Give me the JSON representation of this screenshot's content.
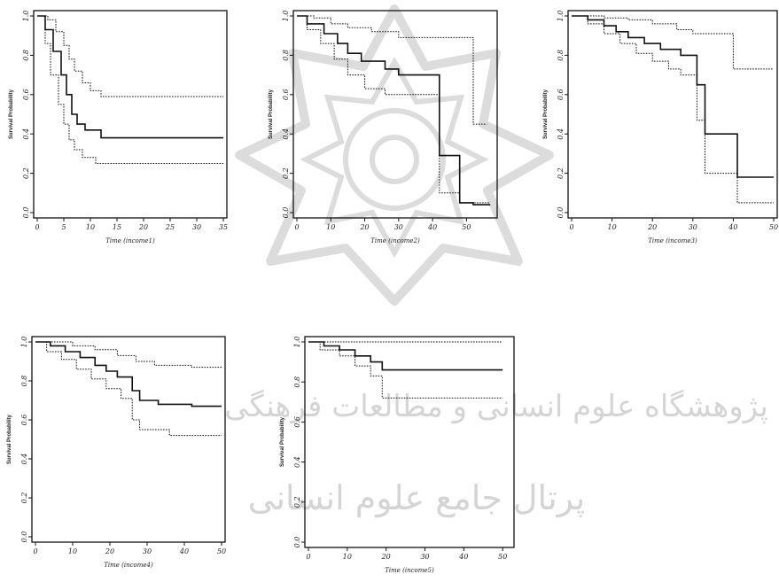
{
  "watermark": {
    "line1": "پژوهشگاه علوم انسانی و مطالعات فرهنگی",
    "line2": "پرتال جامع علوم انسانی"
  },
  "chart_data": [
    {
      "type": "line",
      "xlabel": "Time (income1)",
      "ylabel": "Survival Probability",
      "xlim": [
        0,
        35
      ],
      "ylim": [
        0,
        1
      ],
      "xticks": [
        0,
        5,
        10,
        15,
        20,
        25,
        30,
        35
      ],
      "yticks": [
        0.0,
        0.2,
        0.4,
        0.6,
        0.8,
        1.0
      ],
      "series": [
        {
          "style": "solid",
          "points": [
            [
              0,
              1
            ],
            [
              1.5,
              1
            ],
            [
              1.5,
              0.93
            ],
            [
              3,
              0.93
            ],
            [
              3,
              0.82
            ],
            [
              4.5,
              0.82
            ],
            [
              4.5,
              0.7
            ],
            [
              5.5,
              0.7
            ],
            [
              5.5,
              0.6
            ],
            [
              6.5,
              0.6
            ],
            [
              6.5,
              0.5
            ],
            [
              7.5,
              0.5
            ],
            [
              7.5,
              0.45
            ],
            [
              9,
              0.45
            ],
            [
              9,
              0.42
            ],
            [
              12,
              0.42
            ],
            [
              12,
              0.38
            ],
            [
              35,
              0.38
            ]
          ]
        },
        {
          "style": "dotted",
          "points": [
            [
              0,
              1
            ],
            [
              2,
              1
            ],
            [
              2,
              0.98
            ],
            [
              3.5,
              0.98
            ],
            [
              3.5,
              0.92
            ],
            [
              5,
              0.92
            ],
            [
              5,
              0.85
            ],
            [
              6,
              0.85
            ],
            [
              6,
              0.78
            ],
            [
              7,
              0.78
            ],
            [
              7,
              0.72
            ],
            [
              8.5,
              0.72
            ],
            [
              8.5,
              0.66
            ],
            [
              10,
              0.66
            ],
            [
              10,
              0.62
            ],
            [
              12,
              0.62
            ],
            [
              12,
              0.59
            ],
            [
              35,
              0.59
            ]
          ]
        },
        {
          "style": "dotted",
          "points": [
            [
              0,
              1
            ],
            [
              1.5,
              1
            ],
            [
              1.5,
              0.86
            ],
            [
              2.5,
              0.86
            ],
            [
              2.5,
              0.7
            ],
            [
              4,
              0.7
            ],
            [
              4,
              0.55
            ],
            [
              5,
              0.55
            ],
            [
              5,
              0.45
            ],
            [
              6,
              0.45
            ],
            [
              6,
              0.37
            ],
            [
              7,
              0.37
            ],
            [
              7,
              0.32
            ],
            [
              8.5,
              0.32
            ],
            [
              8.5,
              0.28
            ],
            [
              11,
              0.28
            ],
            [
              11,
              0.25
            ],
            [
              35,
              0.25
            ]
          ]
        }
      ]
    },
    {
      "type": "line",
      "xlabel": "Time (income2)",
      "ylabel": "Survival Probability",
      "xlim": [
        0,
        58
      ],
      "ylim": [
        0,
        1
      ],
      "xticks": [
        0,
        10,
        20,
        30,
        40,
        50
      ],
      "yticks": [
        0.0,
        0.2,
        0.4,
        0.6,
        0.8,
        1.0
      ],
      "series": [
        {
          "style": "solid",
          "points": [
            [
              0,
              1
            ],
            [
              3,
              1
            ],
            [
              3,
              0.96
            ],
            [
              8,
              0.96
            ],
            [
              8,
              0.91
            ],
            [
              12,
              0.91
            ],
            [
              12,
              0.86
            ],
            [
              15,
              0.86
            ],
            [
              15,
              0.81
            ],
            [
              19,
              0.81
            ],
            [
              19,
              0.77
            ],
            [
              26,
              0.77
            ],
            [
              26,
              0.73
            ],
            [
              30,
              0.73
            ],
            [
              30,
              0.7
            ],
            [
              42,
              0.7
            ],
            [
              42,
              0.29
            ],
            [
              48,
              0.29
            ],
            [
              48,
              0.05
            ],
            [
              52,
              0.05
            ],
            [
              52,
              0.04
            ],
            [
              57,
              0.04
            ]
          ]
        },
        {
          "style": "dotted",
          "points": [
            [
              0,
              1
            ],
            [
              5,
              1
            ],
            [
              5,
              0.99
            ],
            [
              10,
              0.99
            ],
            [
              10,
              0.96
            ],
            [
              15,
              0.96
            ],
            [
              15,
              0.94
            ],
            [
              22,
              0.94
            ],
            [
              22,
              0.92
            ],
            [
              30,
              0.92
            ],
            [
              30,
              0.89
            ],
            [
              52,
              0.89
            ],
            [
              52,
              0.45
            ],
            [
              56,
              0.45
            ]
          ]
        },
        {
          "style": "dotted",
          "points": [
            [
              0,
              1
            ],
            [
              3,
              1
            ],
            [
              3,
              0.93
            ],
            [
              7,
              0.93
            ],
            [
              7,
              0.86
            ],
            [
              11,
              0.86
            ],
            [
              11,
              0.78
            ],
            [
              15,
              0.78
            ],
            [
              15,
              0.7
            ],
            [
              20,
              0.7
            ],
            [
              20,
              0.63
            ],
            [
              26,
              0.63
            ],
            [
              26,
              0.6
            ],
            [
              42,
              0.6
            ],
            [
              42,
              0.1
            ],
            [
              48,
              0.1
            ],
            [
              48,
              0.05
            ],
            [
              57,
              0.05
            ]
          ]
        }
      ]
    },
    {
      "type": "line",
      "xlabel": "Time (income3)",
      "ylabel": "Survival Probability",
      "xlim": [
        0,
        50
      ],
      "ylim": [
        0,
        1
      ],
      "xticks": [
        0,
        10,
        20,
        30,
        40,
        50
      ],
      "yticks": [
        0.0,
        0.2,
        0.4,
        0.6,
        0.8,
        1.0
      ],
      "series": [
        {
          "style": "solid",
          "points": [
            [
              0,
              1
            ],
            [
              4,
              1
            ],
            [
              4,
              0.98
            ],
            [
              8,
              0.98
            ],
            [
              8,
              0.95
            ],
            [
              11,
              0.95
            ],
            [
              11,
              0.92
            ],
            [
              14,
              0.92
            ],
            [
              14,
              0.89
            ],
            [
              18,
              0.89
            ],
            [
              18,
              0.86
            ],
            [
              22,
              0.86
            ],
            [
              22,
              0.83
            ],
            [
              27,
              0.83
            ],
            [
              27,
              0.8
            ],
            [
              31,
              0.8
            ],
            [
              31,
              0.65
            ],
            [
              33,
              0.65
            ],
            [
              33,
              0.4
            ],
            [
              41,
              0.4
            ],
            [
              41,
              0.18
            ],
            [
              50,
              0.18
            ]
          ]
        },
        {
          "style": "dotted",
          "points": [
            [
              0,
              1
            ],
            [
              8,
              1
            ],
            [
              8,
              0.99
            ],
            [
              14,
              0.99
            ],
            [
              14,
              0.98
            ],
            [
              20,
              0.98
            ],
            [
              20,
              0.96
            ],
            [
              26,
              0.96
            ],
            [
              26,
              0.93
            ],
            [
              30,
              0.93
            ],
            [
              30,
              0.91
            ],
            [
              40,
              0.91
            ],
            [
              40,
              0.73
            ],
            [
              50,
              0.73
            ]
          ]
        },
        {
          "style": "dotted",
          "points": [
            [
              0,
              1
            ],
            [
              4,
              1
            ],
            [
              4,
              0.96
            ],
            [
              8,
              0.96
            ],
            [
              8,
              0.91
            ],
            [
              12,
              0.91
            ],
            [
              12,
              0.86
            ],
            [
              16,
              0.86
            ],
            [
              16,
              0.81
            ],
            [
              20,
              0.81
            ],
            [
              20,
              0.77
            ],
            [
              24,
              0.77
            ],
            [
              24,
              0.73
            ],
            [
              27,
              0.73
            ],
            [
              27,
              0.7
            ],
            [
              31,
              0.7
            ],
            [
              31,
              0.47
            ],
            [
              33,
              0.47
            ],
            [
              33,
              0.2
            ],
            [
              41,
              0.2
            ],
            [
              41,
              0.05
            ],
            [
              50,
              0.05
            ]
          ]
        }
      ]
    },
    {
      "type": "line",
      "xlabel": "Time (income4)",
      "ylabel": "Survival Probability",
      "xlim": [
        0,
        50
      ],
      "ylim": [
        0,
        1
      ],
      "xticks": [
        0,
        10,
        20,
        30,
        40,
        50
      ],
      "yticks": [
        0.0,
        0.2,
        0.4,
        0.6,
        0.8,
        1.0
      ],
      "series": [
        {
          "style": "solid",
          "points": [
            [
              0,
              1
            ],
            [
              4,
              1
            ],
            [
              4,
              0.98
            ],
            [
              8,
              0.98
            ],
            [
              8,
              0.95
            ],
            [
              12,
              0.95
            ],
            [
              12,
              0.92
            ],
            [
              16,
              0.92
            ],
            [
              16,
              0.88
            ],
            [
              19,
              0.88
            ],
            [
              19,
              0.85
            ],
            [
              22,
              0.85
            ],
            [
              22,
              0.82
            ],
            [
              26,
              0.82
            ],
            [
              26,
              0.75
            ],
            [
              28,
              0.75
            ],
            [
              28,
              0.7
            ],
            [
              33,
              0.7
            ],
            [
              33,
              0.68
            ],
            [
              42,
              0.68
            ],
            [
              42,
              0.67
            ],
            [
              50,
              0.67
            ]
          ]
        },
        {
          "style": "dotted",
          "points": [
            [
              0,
              1
            ],
            [
              10,
              1
            ],
            [
              10,
              0.98
            ],
            [
              16,
              0.98
            ],
            [
              16,
              0.96
            ],
            [
              22,
              0.96
            ],
            [
              22,
              0.93
            ],
            [
              27,
              0.93
            ],
            [
              27,
              0.9
            ],
            [
              32,
              0.9
            ],
            [
              32,
              0.88
            ],
            [
              42,
              0.88
            ],
            [
              42,
              0.87
            ],
            [
              50,
              0.87
            ]
          ]
        },
        {
          "style": "dotted",
          "points": [
            [
              0,
              1
            ],
            [
              3,
              1
            ],
            [
              3,
              0.95
            ],
            [
              7,
              0.95
            ],
            [
              7,
              0.91
            ],
            [
              11,
              0.91
            ],
            [
              11,
              0.86
            ],
            [
              15,
              0.86
            ],
            [
              15,
              0.81
            ],
            [
              19,
              0.81
            ],
            [
              19,
              0.76
            ],
            [
              23,
              0.76
            ],
            [
              23,
              0.71
            ],
            [
              26,
              0.71
            ],
            [
              26,
              0.6
            ],
            [
              28,
              0.6
            ],
            [
              28,
              0.55
            ],
            [
              36,
              0.55
            ],
            [
              36,
              0.52
            ],
            [
              50,
              0.52
            ]
          ]
        }
      ]
    },
    {
      "type": "line",
      "xlabel": "Time (income5)",
      "ylabel": "Survival Probability",
      "xlim": [
        0,
        52
      ],
      "ylim": [
        0,
        1
      ],
      "xticks": [
        0,
        10,
        20,
        30,
        40,
        50
      ],
      "yticks": [
        0.0,
        0.2,
        0.4,
        0.6,
        0.8,
        1.0
      ],
      "series": [
        {
          "style": "solid",
          "points": [
            [
              0,
              1
            ],
            [
              4,
              1
            ],
            [
              4,
              0.98
            ],
            [
              8,
              0.98
            ],
            [
              8,
              0.96
            ],
            [
              12,
              0.96
            ],
            [
              12,
              0.93
            ],
            [
              16,
              0.93
            ],
            [
              16,
              0.9
            ],
            [
              19,
              0.9
            ],
            [
              19,
              0.86
            ],
            [
              50,
              0.86
            ]
          ]
        },
        {
          "style": "dotted",
          "points": [
            [
              0,
              1
            ],
            [
              50,
              1
            ]
          ]
        },
        {
          "style": "dotted",
          "points": [
            [
              0,
              1
            ],
            [
              3,
              1
            ],
            [
              3,
              0.96
            ],
            [
              8,
              0.96
            ],
            [
              8,
              0.93
            ],
            [
              12,
              0.93
            ],
            [
              12,
              0.88
            ],
            [
              16,
              0.88
            ],
            [
              16,
              0.83
            ],
            [
              19,
              0.83
            ],
            [
              19,
              0.72
            ],
            [
              50,
              0.72
            ]
          ]
        }
      ]
    }
  ]
}
